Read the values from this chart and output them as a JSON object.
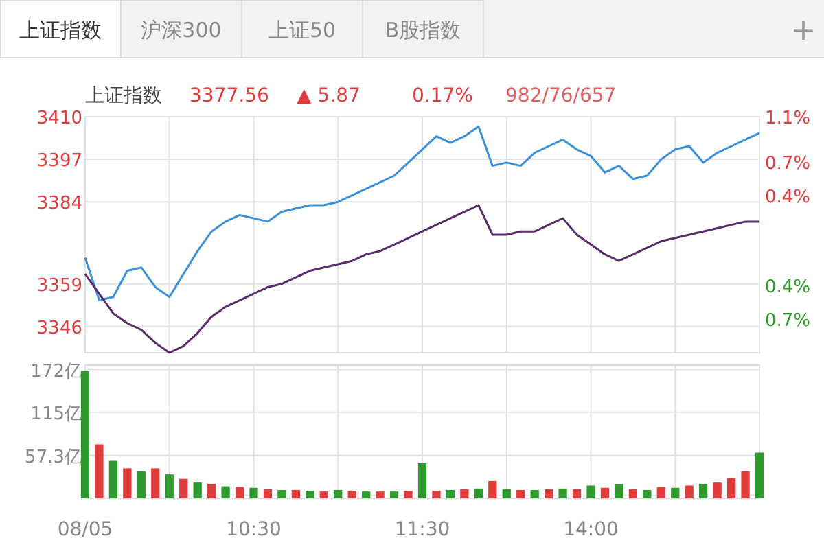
{
  "chart_data": [
    {
      "type": "line",
      "title": "上证指数",
      "annotations": [
        "上证指数",
        "沪深300",
        "上证50",
        "B股指数",
        "+",
        "3377.56",
        "▲ 5.87",
        "0.17%",
        "982/76/657"
      ],
      "categories": [
        null,
        null,
        null,
        null,
        null,
        null,
        null,
        null,
        null,
        null,
        null,
        null,
        null,
        null,
        null,
        null,
        null,
        null,
        null,
        null,
        null,
        null,
        null,
        null,
        null,
        null,
        null,
        null,
        null,
        null,
        null,
        null,
        null,
        null,
        null,
        null,
        null,
        null,
        null,
        null,
        null,
        null,
        null,
        null,
        null,
        null,
        null,
        null,
        null
      ],
      "ylim": [
        3338,
        3410
      ],
      "yticks": [
        3346,
        3359,
        3384,
        3397,
        3410
      ],
      "y2lim": [
        -1.0,
        1.1
      ],
      "y2ticks": [
        {
          "value": -0.7,
          "label": "0.7%"
        },
        {
          "value": -0.4,
          "label": "0.4%"
        },
        {
          "value": 0.4,
          "label": "0.4%"
        },
        {
          "value": 0.7,
          "label": "0.7%"
        },
        {
          "value": 1.1,
          "label": "1.1%"
        }
      ],
      "grid": true,
      "series": [
        {
          "color": "#3b8fd9",
          "values": [
            3367,
            3354,
            3355,
            3363,
            3364,
            3358,
            3355,
            3362,
            3369,
            3375,
            3378,
            3380,
            3379,
            3378,
            3381,
            3382,
            3383,
            3383,
            3384,
            3386,
            3388,
            3390,
            3392,
            3396,
            3400,
            3404,
            3402,
            3404,
            3407,
            3395,
            3396,
            3395,
            3399,
            3401,
            3403,
            3400,
            3398,
            3393,
            3395,
            3391,
            3392,
            3397,
            3400,
            3401,
            3396,
            3399,
            3401,
            3403,
            3405
          ]
        },
        {
          "color": "#5a2d6a",
          "values": [
            3362,
            3356,
            3350,
            3347,
            3345,
            3341,
            3338,
            3340,
            3344,
            3349,
            3352,
            3354,
            3356,
            3358,
            3359,
            3361,
            3363,
            3364,
            3365,
            3366,
            3368,
            3369,
            3371,
            3373,
            3375,
            3377,
            3379,
            3381,
            3383,
            3374,
            3374,
            3375,
            3375,
            3377,
            3379,
            3374,
            3371,
            3368,
            3366,
            3368,
            3370,
            3372,
            3373,
            3374,
            3375,
            3376,
            3377,
            3378,
            3378
          ]
        }
      ]
    },
    {
      "type": "bar",
      "categories": [
        "08/05",
        null,
        null,
        null,
        null,
        null,
        null,
        null,
        null,
        null,
        null,
        null,
        "10:30",
        null,
        null,
        null,
        null,
        null,
        null,
        null,
        null,
        null,
        null,
        null,
        "11:30",
        null,
        null,
        null,
        null,
        null,
        null,
        null,
        null,
        null,
        null,
        null,
        "14:00",
        null,
        null,
        null,
        null,
        null,
        null,
        null,
        null,
        null,
        null,
        null,
        null
      ],
      "ylim": [
        0,
        178
      ],
      "yticks": [
        {
          "value": 57.3,
          "label": "57.3亿"
        },
        {
          "value": 115,
          "label": "115亿"
        },
        {
          "value": 172,
          "label": "172亿"
        }
      ],
      "grid": true,
      "values": [
        170,
        72,
        50,
        40,
        36,
        40,
        32,
        26,
        21,
        19,
        16,
        15,
        14,
        12,
        11,
        11,
        10,
        9,
        11,
        10,
        9,
        9,
        9,
        10,
        47,
        10,
        11,
        12,
        13,
        23,
        12,
        11,
        11,
        12,
        13,
        12,
        17,
        14,
        19,
        12,
        11,
        15,
        14,
        17,
        19,
        21,
        27,
        36,
        61
      ],
      "colors": [
        "#2e9a2e",
        "#e03c3c",
        "#2e9a2e",
        "#e03c3c",
        "#2e9a2e",
        "#e03c3c",
        "#2e9a2e",
        "#e03c3c",
        "#2e9a2e",
        "#e03c3c",
        "#2e9a2e",
        "#e03c3c",
        "#2e9a2e",
        "#e03c3c",
        "#2e9a2e",
        "#e03c3c",
        "#2e9a2e",
        "#e03c3c",
        "#2e9a2e",
        "#e03c3c",
        "#2e9a2e",
        "#e03c3c",
        "#2e9a2e",
        "#e03c3c",
        "#2e9a2e",
        "#e03c3c",
        "#2e9a2e",
        "#e03c3c",
        "#2e9a2e",
        "#e03c3c",
        "#2e9a2e",
        "#e03c3c",
        "#2e9a2e",
        "#e03c3c",
        "#2e9a2e",
        "#e03c3c",
        "#2e9a2e",
        "#e03c3c",
        "#2e9a2e",
        "#e03c3c",
        "#2e9a2e",
        "#e03c3c",
        "#2e9a2e",
        "#e03c3c",
        "#2e9a2e",
        "#e03c3c",
        "#e03c3c",
        "#e03c3c",
        "#2e9a2e"
      ]
    }
  ]
}
